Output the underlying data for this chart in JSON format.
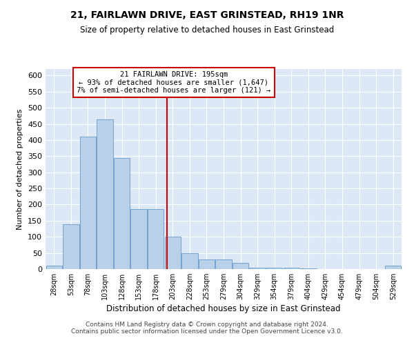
{
  "title": "21, FAIRLAWN DRIVE, EAST GRINSTEAD, RH19 1NR",
  "subtitle": "Size of property relative to detached houses in East Grinstead",
  "xlabel": "Distribution of detached houses by size in East Grinstead",
  "ylabel": "Number of detached properties",
  "bar_labels": [
    "28sqm",
    "53sqm",
    "78sqm",
    "103sqm",
    "128sqm",
    "153sqm",
    "178sqm",
    "203sqm",
    "228sqm",
    "253sqm",
    "279sqm",
    "304sqm",
    "329sqm",
    "354sqm",
    "379sqm",
    "404sqm",
    "429sqm",
    "454sqm",
    "479sqm",
    "504sqm",
    "529sqm"
  ],
  "bar_values": [
    10,
    140,
    410,
    465,
    345,
    185,
    185,
    100,
    50,
    30,
    30,
    20,
    5,
    5,
    5,
    3,
    0,
    0,
    0,
    0,
    10
  ],
  "bar_color": "#b8d0e8",
  "bar_edge_color": "#6699cc",
  "property_size_label": "21 FAIRLAWN DRIVE: 195sqm",
  "line_color": "#cc0000",
  "annotation_line1": "← 93% of detached houses are smaller (1,647)",
  "annotation_line2": "7% of semi-detached houses are larger (121) →",
  "ylim": [
    0,
    620
  ],
  "yticks": [
    0,
    50,
    100,
    150,
    200,
    250,
    300,
    350,
    400,
    450,
    500,
    550,
    600
  ],
  "bg_color": "#dce8f5",
  "footer_line1": "Contains HM Land Registry data © Crown copyright and database right 2024.",
  "footer_line2": "Contains public sector information licensed under the Open Government Licence v3.0."
}
